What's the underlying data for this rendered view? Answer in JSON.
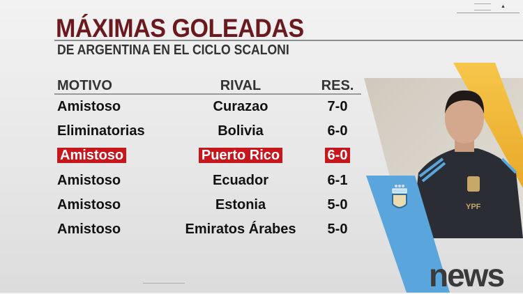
{
  "title": "MÁXIMAS GOLEADAS",
  "subtitle": "DE ARGENTINA EN EL CICLO SCALONI",
  "headers": {
    "motivo": "MOTIVO",
    "rival": "RIVAL",
    "res": "RES."
  },
  "rows": [
    {
      "motivo": "Amistoso",
      "rival": "Curazao",
      "res": "7-0",
      "highlight": false
    },
    {
      "motivo": "Eliminatorias",
      "rival": "Bolivia",
      "res": "6-0",
      "highlight": false
    },
    {
      "motivo": "Amistoso",
      "rival": "Puerto Rico",
      "res": "6-0",
      "highlight": true
    },
    {
      "motivo": "Amistoso",
      "rival": "Ecuador",
      "res": "6-1",
      "highlight": false
    },
    {
      "motivo": "Amistoso",
      "rival": "Estonia",
      "res": "5-0",
      "highlight": false
    },
    {
      "motivo": "Amistoso",
      "rival": "Emiratos Árabes",
      "res": "5-0",
      "highlight": false
    }
  ],
  "brand": "news",
  "colors": {
    "title": "#6a1a1f",
    "highlight": "#c8161d",
    "accent_yellow": "#f2b83a",
    "accent_blue": "#5aa6dc"
  }
}
